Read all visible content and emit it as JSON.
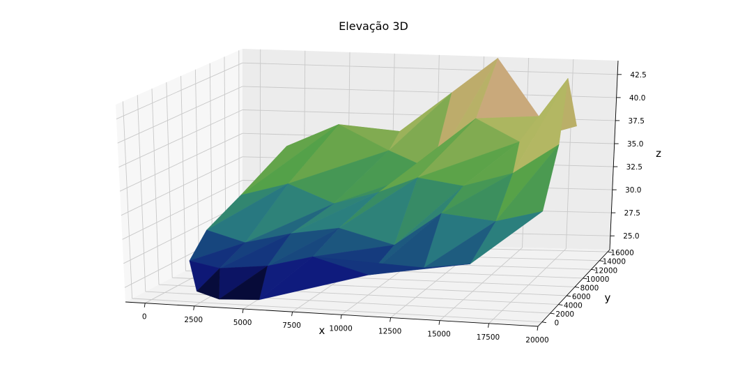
{
  "chart_data": {
    "type": "surface3d",
    "title": "Elevação 3D",
    "xlabel": "x",
    "ylabel": "y",
    "zlabel": "z",
    "xlim": [
      -1000,
      20000
    ],
    "ylim": [
      -1000,
      16500
    ],
    "zlim": [
      23.5,
      44
    ],
    "x_ticks": [
      "0",
      "2500",
      "5000",
      "7500",
      "10000",
      "12500",
      "15000",
      "17500",
      "20000"
    ],
    "y_ticks": [
      "0",
      "2000",
      "4000",
      "6000",
      "8000",
      "10000",
      "12000",
      "14000",
      "16000"
    ],
    "z_ticks": [
      "25.0",
      "27.5",
      "30.0",
      "32.5",
      "35.0",
      "37.5",
      "40.0",
      "42.5"
    ],
    "colormap": "gist_earth",
    "grid": true,
    "points": [
      [
        2000,
        1000,
        24.2
      ],
      [
        3200,
        800,
        23.6
      ],
      [
        5300,
        700,
        23.8
      ],
      [
        1000,
        3000,
        26.5
      ],
      [
        2600,
        2900,
        25.9
      ],
      [
        5000,
        3200,
        26.2
      ],
      [
        7500,
        2800,
        27.4
      ],
      [
        10500,
        2400,
        26.0
      ],
      [
        13500,
        2000,
        27.0
      ],
      [
        16000,
        1600,
        27.6
      ],
      [
        900,
        6000,
        28.6
      ],
      [
        3000,
        5800,
        27.5
      ],
      [
        5300,
        6200,
        28.4
      ],
      [
        8000,
        5800,
        29.2
      ],
      [
        11000,
        5500,
        27.8
      ],
      [
        13600,
        5200,
        31.0
      ],
      [
        16600,
        4700,
        30.5
      ],
      [
        19200,
        4200,
        31.6
      ],
      [
        1700,
        9000,
        31.2
      ],
      [
        4200,
        9200,
        32.4
      ],
      [
        6800,
        8800,
        30.6
      ],
      [
        9300,
        8600,
        31.9
      ],
      [
        11500,
        8200,
        33.5
      ],
      [
        14000,
        8000,
        32.8
      ],
      [
        16800,
        7500,
        34.2
      ],
      [
        19400,
        7000,
        37.0
      ],
      [
        3000,
        12400,
        35.2
      ],
      [
        5800,
        12600,
        37.5
      ],
      [
        8700,
        12200,
        35.0
      ],
      [
        11200,
        11800,
        33.2
      ],
      [
        13700,
        11400,
        38.6
      ],
      [
        16200,
        11000,
        36.4
      ],
      [
        19000,
        10300,
        42.8
      ],
      [
        5200,
        15200,
        34.5
      ],
      [
        8200,
        15500,
        36.0
      ],
      [
        11000,
        15700,
        40.2
      ],
      [
        13500,
        15800,
        44.0
      ],
      [
        16000,
        15400,
        38.0
      ],
      [
        18300,
        14800,
        37.2
      ]
    ],
    "triangles": [
      [
        0,
        1,
        4
      ],
      [
        0,
        4,
        3
      ],
      [
        1,
        2,
        5
      ],
      [
        1,
        5,
        4
      ],
      [
        2,
        6,
        5
      ],
      [
        2,
        7,
        6
      ],
      [
        7,
        8,
        6
      ],
      [
        8,
        9,
        7
      ],
      [
        3,
        4,
        11
      ],
      [
        3,
        11,
        10
      ],
      [
        4,
        5,
        12
      ],
      [
        4,
        12,
        11
      ],
      [
        5,
        6,
        13
      ],
      [
        5,
        13,
        12
      ],
      [
        6,
        7,
        14
      ],
      [
        6,
        14,
        13
      ],
      [
        7,
        8,
        15
      ],
      [
        7,
        15,
        14
      ],
      [
        8,
        9,
        16
      ],
      [
        8,
        16,
        15
      ],
      [
        9,
        17,
        16
      ],
      [
        10,
        11,
        19
      ],
      [
        10,
        19,
        18
      ],
      [
        11,
        12,
        20
      ],
      [
        11,
        20,
        19
      ],
      [
        12,
        13,
        21
      ],
      [
        12,
        21,
        20
      ],
      [
        13,
        14,
        22
      ],
      [
        13,
        22,
        21
      ],
      [
        14,
        15,
        23
      ],
      [
        14,
        23,
        22
      ],
      [
        15,
        16,
        24
      ],
      [
        15,
        24,
        23
      ],
      [
        16,
        17,
        25
      ],
      [
        16,
        25,
        24
      ],
      [
        18,
        19,
        27
      ],
      [
        18,
        27,
        26
      ],
      [
        19,
        20,
        28
      ],
      [
        19,
        28,
        27
      ],
      [
        20,
        21,
        29
      ],
      [
        20,
        29,
        28
      ],
      [
        21,
        22,
        30
      ],
      [
        21,
        30,
        29
      ],
      [
        22,
        23,
        31
      ],
      [
        22,
        31,
        30
      ],
      [
        23,
        24,
        31
      ],
      [
        24,
        25,
        32
      ],
      [
        24,
        32,
        31
      ],
      [
        26,
        27,
        33
      ],
      [
        27,
        28,
        34
      ],
      [
        27,
        34,
        33
      ],
      [
        28,
        29,
        35
      ],
      [
        28,
        35,
        34
      ],
      [
        29,
        30,
        36
      ],
      [
        29,
        36,
        35
      ],
      [
        30,
        31,
        37
      ],
      [
        30,
        37,
        36
      ],
      [
        31,
        32,
        38
      ],
      [
        31,
        38,
        37
      ]
    ]
  }
}
